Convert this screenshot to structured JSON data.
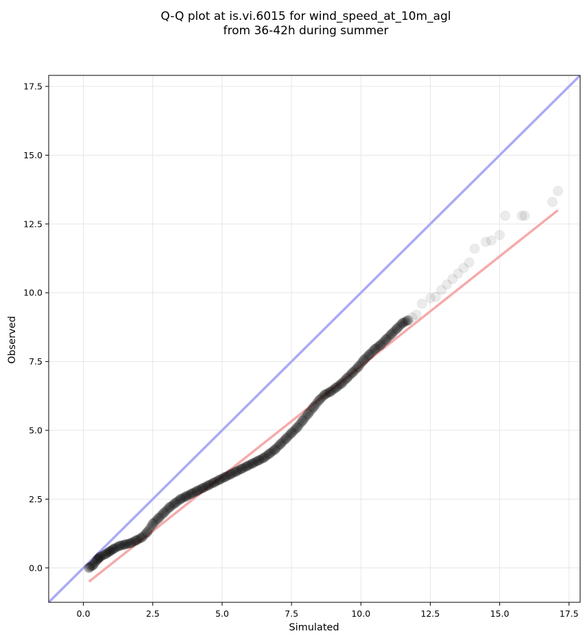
{
  "chart_data": {
    "type": "scatter",
    "title_lines": [
      "Q-Q plot at is.vi.6015 for wind_speed_at_10m_agl",
      "from 36-42h during summer"
    ],
    "xlabel": "Simulated",
    "ylabel": "Observed",
    "xlim": [
      -1.25,
      17.9
    ],
    "ylim": [
      -1.25,
      17.9
    ],
    "x_ticks": [
      0.0,
      2.5,
      5.0,
      7.5,
      10.0,
      12.5,
      15.0,
      17.5
    ],
    "x_tick_labels": [
      "0.0",
      "2.5",
      "5.0",
      "7.5",
      "10.0",
      "12.5",
      "15.0",
      "17.5"
    ],
    "y_ticks": [
      0.0,
      2.5,
      5.0,
      7.5,
      10.0,
      12.5,
      15.0,
      17.5
    ],
    "y_tick_labels": [
      "0.0",
      "2.5",
      "5.0",
      "7.5",
      "10.0",
      "12.5",
      "15.0",
      "17.5"
    ],
    "grid": true,
    "colors": {
      "identity_line": "#aaaaf5",
      "fit_line": "#f5aaaa",
      "points": "#000000",
      "grid": "#e6e6e6"
    },
    "identity_line": {
      "x": [
        -1.25,
        17.9
      ],
      "y": [
        -1.25,
        17.9
      ]
    },
    "fit_line": {
      "x": [
        0.2,
        17.1
      ],
      "y": [
        -0.5,
        13.0
      ]
    },
    "points": {
      "x": [
        0.2,
        0.35,
        0.5,
        0.6,
        0.8,
        0.95,
        1.1,
        1.3,
        1.5,
        1.7,
        1.9,
        2.1,
        2.3,
        2.5,
        2.7,
        2.9,
        3.1,
        3.3,
        3.5,
        3.7,
        3.9,
        4.1,
        4.3,
        4.5,
        4.7,
        4.9,
        5.1,
        5.3,
        5.5,
        5.7,
        5.9,
        6.1,
        6.3,
        6.5,
        6.7,
        6.9,
        7.1,
        7.3,
        7.5,
        7.7,
        7.9,
        8.1,
        8.3,
        8.5,
        8.7,
        8.9,
        9.1,
        9.3,
        9.5,
        9.7,
        9.9,
        10.1,
        10.3,
        10.5,
        10.7,
        10.9,
        11.1,
        11.3,
        11.5,
        11.7,
        11.85,
        12.0,
        12.2,
        12.5,
        12.7,
        12.9,
        13.1,
        13.3,
        13.5,
        13.7,
        13.9,
        14.1,
        14.5,
        14.7,
        15.0,
        15.2,
        15.8,
        15.9,
        16.9,
        17.1
      ],
      "y": [
        0.0,
        0.1,
        0.3,
        0.4,
        0.5,
        0.6,
        0.7,
        0.8,
        0.85,
        0.9,
        1.0,
        1.1,
        1.3,
        1.6,
        1.8,
        2.0,
        2.2,
        2.35,
        2.5,
        2.6,
        2.7,
        2.8,
        2.9,
        3.0,
        3.1,
        3.2,
        3.3,
        3.4,
        3.5,
        3.6,
        3.7,
        3.8,
        3.9,
        4.0,
        4.15,
        4.3,
        4.5,
        4.7,
        4.9,
        5.1,
        5.35,
        5.6,
        5.85,
        6.1,
        6.3,
        6.4,
        6.55,
        6.7,
        6.9,
        7.1,
        7.3,
        7.55,
        7.75,
        7.95,
        8.1,
        8.3,
        8.5,
        8.7,
        8.9,
        9.0,
        9.1,
        9.2,
        9.6,
        9.8,
        9.85,
        10.1,
        10.3,
        10.5,
        10.7,
        10.9,
        11.1,
        11.6,
        11.85,
        11.9,
        12.1,
        12.8,
        12.8,
        12.8,
        13.3,
        13.7
      ]
    }
  }
}
